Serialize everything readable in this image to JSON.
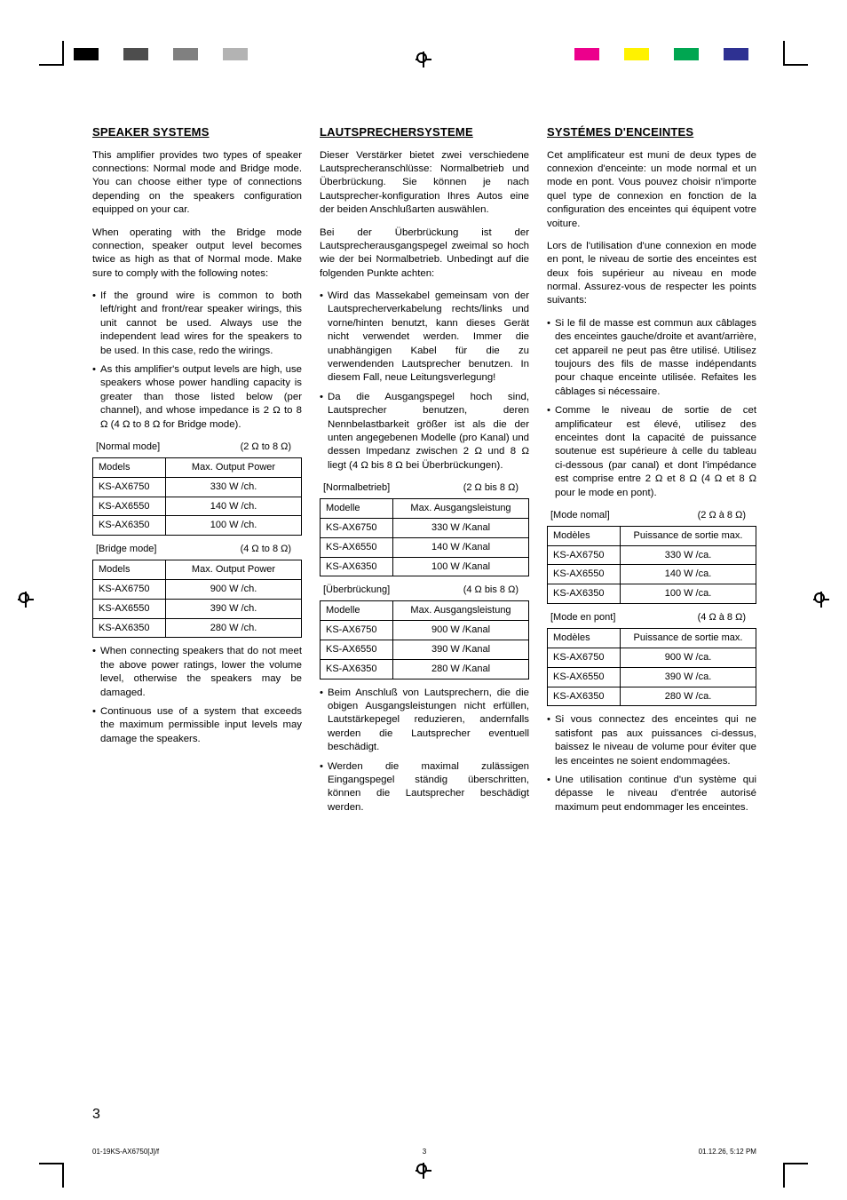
{
  "colorbars": {
    "left": [
      "#000000",
      "#ffffff",
      "#4d4d4d",
      "#ffffff",
      "#808080",
      "#ffffff",
      "#b3b3b3",
      "#ffffff"
    ],
    "right": [
      "#ec008c",
      "#ffffff",
      "#fff200",
      "#ffffff",
      "#00a651",
      "#ffffff",
      "#2e3192",
      "#ffffff"
    ]
  },
  "page_number": "3",
  "footer": {
    "file": "01-19KS-AX6750[J]/f",
    "page": "3",
    "timestamp": "01.12.26, 5:12 PM"
  },
  "columns": {
    "en": {
      "heading": "SPEAKER SYSTEMS",
      "p1": "This amplifier provides two types of speaker connections: Normal mode and Bridge mode. You can choose either type of connections depending on the speakers configuration equipped on your car.",
      "p2": "When operating with the Bridge mode connection, speaker output level becomes twice as high as that of Normal mode. Make sure to comply with the following notes:",
      "bullets_a": [
        "If the ground wire is common to both left/right and front/rear speaker wirings, this unit cannot be used. Always use the independent lead wires for the speakers to be used. In this case, redo the wirings.",
        "As this amplifier's output levels are high, use speakers whose power handling capacity is greater than those listed below (per channel), and whose impedance is 2 Ω to 8 Ω (4 Ω to 8 Ω for Bridge mode)."
      ],
      "table_normal": {
        "label": "[Normal mode]",
        "range": "(2 Ω to 8 Ω)",
        "headers": [
          "Models",
          "Max. Output Power"
        ],
        "rows": [
          [
            "KS-AX6750",
            "330 W /ch."
          ],
          [
            "KS-AX6550",
            "140 W /ch."
          ],
          [
            "KS-AX6350",
            "100 W /ch."
          ]
        ]
      },
      "table_bridge": {
        "label": "[Bridge mode]",
        "range": "(4 Ω to 8 Ω)",
        "headers": [
          "Models",
          "Max. Output Power"
        ],
        "rows": [
          [
            "KS-AX6750",
            "900 W /ch."
          ],
          [
            "KS-AX6550",
            "390 W /ch."
          ],
          [
            "KS-AX6350",
            "280 W /ch."
          ]
        ]
      },
      "bullets_b": [
        "When connecting speakers that do not meet the above power ratings, lower the volume level, otherwise the speakers may be damaged.",
        "Continuous use of a system that exceeds the maximum permissible input levels may damage the speakers."
      ]
    },
    "de": {
      "heading": "LAUTSPRECHERSYSTEME",
      "p1": "Dieser Verstärker bietet zwei verschiedene Lautsprecheranschlüsse: Normalbetrieb und Überbrückung. Sie können je nach Lautsprecher-konfiguration Ihres Autos eine der beiden Anschlußarten auswählen.",
      "p2": "Bei der Überbrückung ist der Lautsprecherausgangspegel zweimal so hoch wie der bei Normalbetrieb. Unbedingt auf die folgenden Punkte achten:",
      "bullets_a": [
        "Wird das Massekabel gemeinsam von der Lautsprecherverkabelung rechts/links und vorne/hinten benutzt, kann dieses Gerät nicht verwendet werden. Immer die unabhängigen Kabel für die zu verwendenden Lautsprecher benutzen. In diesem Fall, neue Leitungsverlegung!",
        "Da die Ausgangspegel hoch sind, Lautsprecher benutzen, deren Nennbelastbarkeit größer ist als die der unten angegebenen Modelle (pro Kanal) und dessen Impedanz zwischen 2 Ω und 8 Ω liegt (4 Ω bis 8 Ω bei Überbrückungen)."
      ],
      "table_normal": {
        "label": "[Normalbetrieb]",
        "range": "(2 Ω bis 8 Ω)",
        "headers": [
          "Modelle",
          "Max. Ausgangsleistung"
        ],
        "rows": [
          [
            "KS-AX6750",
            "330 W /Kanal"
          ],
          [
            "KS-AX6550",
            "140 W /Kanal"
          ],
          [
            "KS-AX6350",
            "100 W /Kanal"
          ]
        ]
      },
      "table_bridge": {
        "label": "[Überbrückung]",
        "range": "(4 Ω bis 8 Ω)",
        "headers": [
          "Modelle",
          "Max. Ausgangsleistung"
        ],
        "rows": [
          [
            "KS-AX6750",
            "900 W /Kanal"
          ],
          [
            "KS-AX6550",
            "390 W /Kanal"
          ],
          [
            "KS-AX6350",
            "280 W /Kanal"
          ]
        ]
      },
      "bullets_b": [
        "Beim Anschluß von Lautsprechern, die die obigen Ausgangsleistungen nicht erfüllen, Lautstärkepegel reduzieren, andernfalls werden die Lautsprecher eventuell beschädigt.",
        "Werden die maximal zulässigen Eingangspegel ständig überschritten, können die Lautsprecher beschädigt werden."
      ]
    },
    "fr": {
      "heading": "SYSTÉMES D'ENCEINTES",
      "p1": "Cet amplificateur est muni de deux types de connexion d'enceinte: un mode normal et un mode en pont. Vous pouvez choisir n'importe quel type de connexion en fonction de la configuration des enceintes qui équipent votre voiture.",
      "p2": "Lors de l'utilisation d'une connexion en mode en pont, le niveau de sortie des enceintes est deux fois supérieur au niveau en mode normal. Assurez-vous de respecter les points suivants:",
      "bullets_a": [
        "Si le fil de masse est commun aux câblages des enceintes gauche/droite et avant/arrière, cet appareil ne peut pas être utilisé. Utilisez toujours des fils de masse indépendants pour chaque enceinte utilisée. Refaites les câblages si nécessaire.",
        "Comme le niveau de sortie de cet amplificateur est élevé, utilisez des enceintes dont la capacité de puissance soutenue est supérieure à celle du tableau ci-dessous (par canal) et dont l'impédance est comprise entre 2 Ω et 8 Ω (4 Ω et 8 Ω pour le mode en pont)."
      ],
      "table_normal": {
        "label": "[Mode nomal]",
        "range": "(2 Ω à 8 Ω)",
        "headers": [
          "Modèles",
          "Puissance de sortie max."
        ],
        "rows": [
          [
            "KS-AX6750",
            "330 W /ca."
          ],
          [
            "KS-AX6550",
            "140 W /ca."
          ],
          [
            "KS-AX6350",
            "100 W /ca."
          ]
        ]
      },
      "table_bridge": {
        "label": "[Mode en pont]",
        "range": "(4 Ω à 8 Ω)",
        "headers": [
          "Modèles",
          "Puissance de sortie max."
        ],
        "rows": [
          [
            "KS-AX6750",
            "900 W /ca."
          ],
          [
            "KS-AX6550",
            "390 W /ca."
          ],
          [
            "KS-AX6350",
            "280 W /ca."
          ]
        ]
      },
      "bullets_b": [
        "Si vous connectez des enceintes qui ne satisfont pas aux puissances ci-dessus, baissez le niveau de volume pour éviter que les enceintes ne soient endommagées.",
        "Une utilisation continue d'un système qui dépasse le niveau d'entrée autorisé maximum peut endommager les enceintes."
      ]
    }
  }
}
